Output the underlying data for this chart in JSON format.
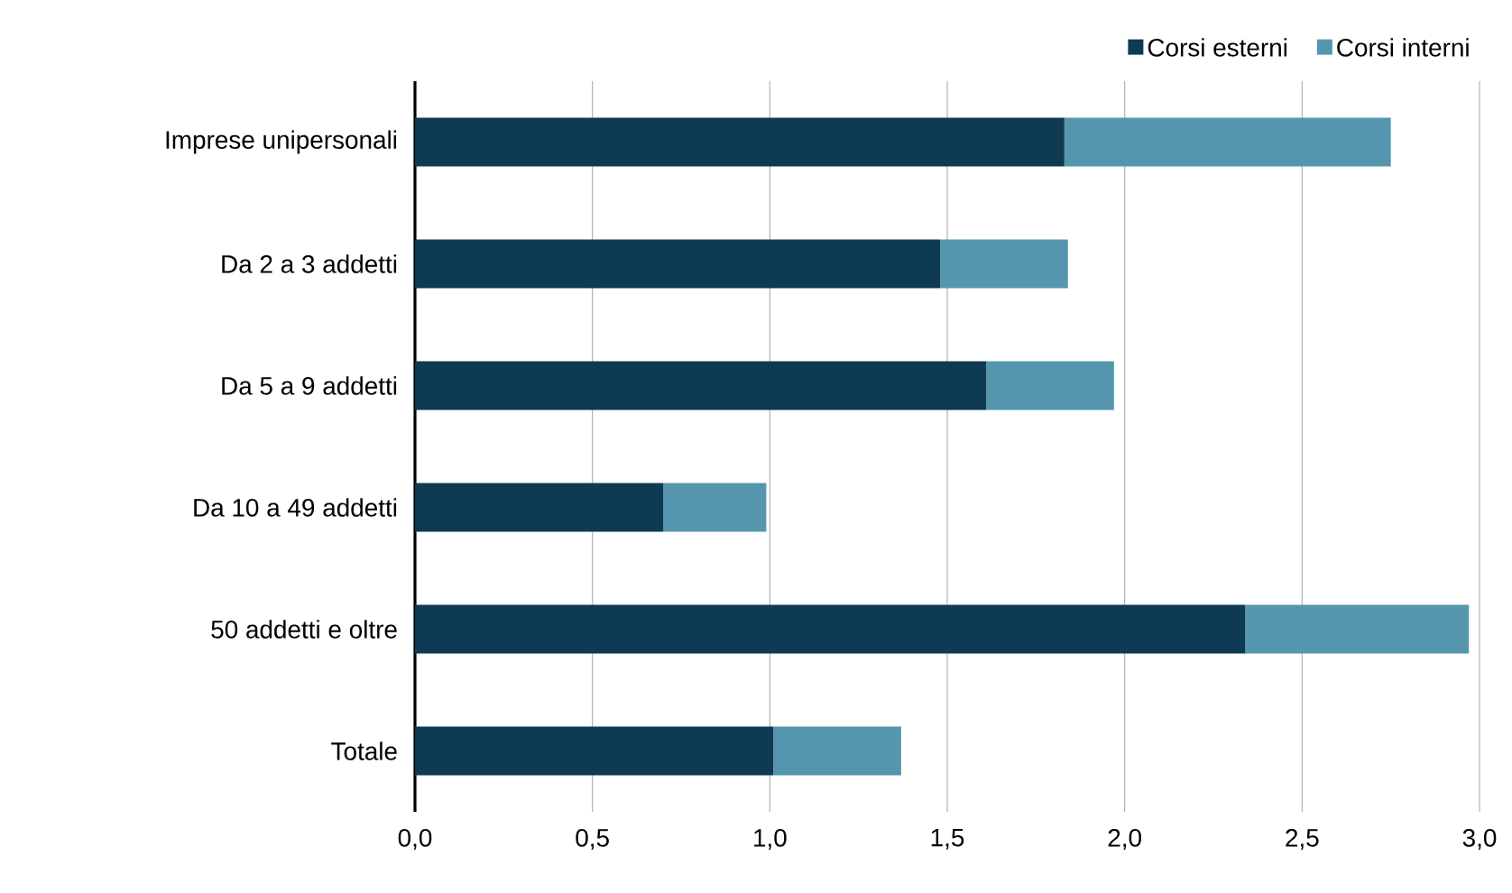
{
  "chart_data": {
    "type": "bar",
    "orientation": "horizontal",
    "stacked": true,
    "categories": [
      "Imprese unipersonali",
      "Da 2 a 3 addetti",
      "Da 5 a 9 addetti",
      "Da 10 a 49 addetti",
      "50 addetti e oltre",
      "Totale"
    ],
    "series": [
      {
        "name": "Corsi esterni",
        "color": "#0e3a53",
        "values": [
          1.83,
          1.48,
          1.61,
          0.7,
          2.34,
          1.01
        ]
      },
      {
        "name": "Corsi interni",
        "color": "#5596ae",
        "values": [
          0.92,
          0.36,
          0.36,
          0.29,
          0.63,
          0.36
        ]
      }
    ],
    "xlim": [
      0,
      3
    ],
    "xticks": [
      {
        "value": 0,
        "label": "0,0"
      },
      {
        "value": 0.5,
        "label": "0,5"
      },
      {
        "value": 1,
        "label": "1,0"
      },
      {
        "value": 1.5,
        "label": "1,5"
      },
      {
        "value": 2,
        "label": "2,0"
      },
      {
        "value": 2.5,
        "label": "2,5"
      },
      {
        "value": 3,
        "label": "3,0"
      }
    ],
    "grid": "x",
    "legend": "top right"
  }
}
